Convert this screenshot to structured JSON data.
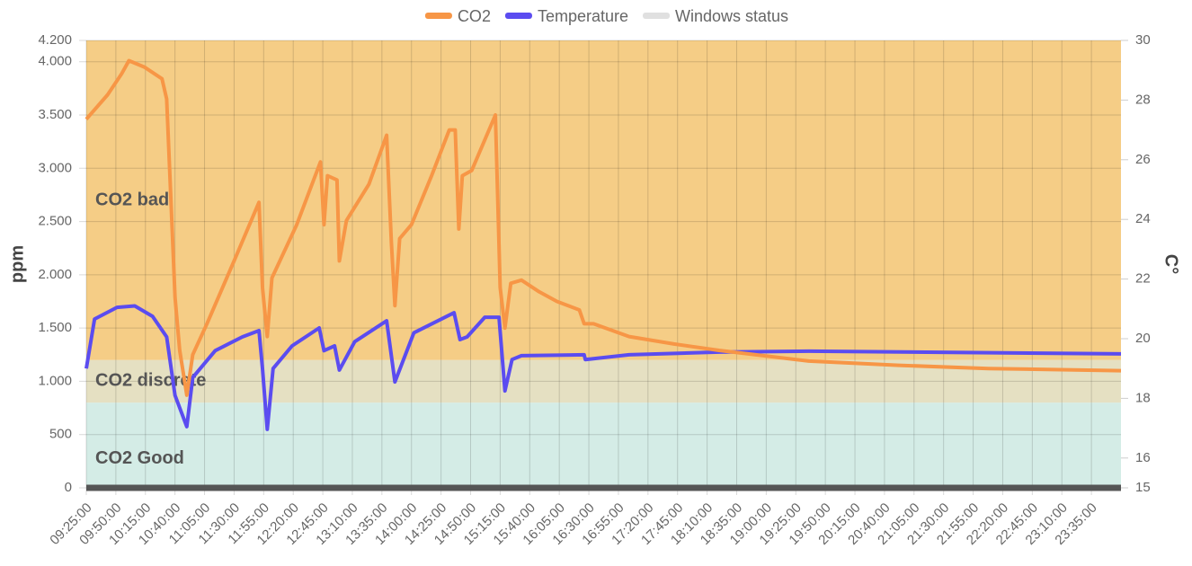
{
  "chart_data": {
    "type": "line",
    "y_label": "ppm",
    "y2_label": "C°",
    "xlim": [
      565,
      1440
    ],
    "ylim": [
      0,
      4200
    ],
    "y2lim": [
      15,
      30
    ],
    "grid": true,
    "legend": "top",
    "yticks": [
      0,
      500,
      {
        "value": 1000,
        "label": "1.000"
      },
      {
        "value": 1500,
        "label": "1.500"
      },
      {
        "value": 2000,
        "label": "2.000"
      },
      {
        "value": 2500,
        "label": "2.500"
      },
      {
        "value": 3000,
        "label": "3.000"
      },
      {
        "value": 3500,
        "label": "3.500"
      },
      {
        "value": 4000,
        "label": "4.000"
      },
      {
        "value": 4200,
        "label": "4.200"
      }
    ],
    "y2ticks": [
      15,
      16,
      18,
      20,
      22,
      24,
      26,
      28,
      30
    ],
    "xticks": [
      {
        "value": 565,
        "label": "09:25:00"
      },
      {
        "value": 590,
        "label": "09:50:00"
      },
      {
        "value": 615,
        "label": "10:15:00"
      },
      {
        "value": 640,
        "label": "10:40:00"
      },
      {
        "value": 665,
        "label": "11:05:00"
      },
      {
        "value": 690,
        "label": "11:30:00"
      },
      {
        "value": 715,
        "label": "11:55:00"
      },
      {
        "value": 740,
        "label": "12:20:00"
      },
      {
        "value": 765,
        "label": "12:45:00"
      },
      {
        "value": 790,
        "label": "13:10:00"
      },
      {
        "value": 815,
        "label": "13:35:00"
      },
      {
        "value": 840,
        "label": "14:00:00"
      },
      {
        "value": 865,
        "label": "14:25:00"
      },
      {
        "value": 890,
        "label": "14:50:00"
      },
      {
        "value": 915,
        "label": "15:15:00"
      },
      {
        "value": 940,
        "label": "15:40:00"
      },
      {
        "value": 965,
        "label": "16:05:00"
      },
      {
        "value": 990,
        "label": "16:30:00"
      },
      {
        "value": 1015,
        "label": "16:55:00"
      },
      {
        "value": 1040,
        "label": "17:20:00"
      },
      {
        "value": 1065,
        "label": "17:45:00"
      },
      {
        "value": 1090,
        "label": "18:10:00"
      },
      {
        "value": 1115,
        "label": "18:35:00"
      },
      {
        "value": 1140,
        "label": "19:00:00"
      },
      {
        "value": 1165,
        "label": "19:25:00"
      },
      {
        "value": 1190,
        "label": "19:50:00"
      },
      {
        "value": 1215,
        "label": "20:15:00"
      },
      {
        "value": 1240,
        "label": "20:40:00"
      },
      {
        "value": 1265,
        "label": "21:05:00"
      },
      {
        "value": 1290,
        "label": "21:30:00"
      },
      {
        "value": 1315,
        "label": "21:55:00"
      },
      {
        "value": 1340,
        "label": "22:20:00"
      },
      {
        "value": 1365,
        "label": "22:45:00"
      },
      {
        "value": 1390,
        "label": "23:10:00"
      },
      {
        "value": 1415,
        "label": "23:35:00"
      }
    ],
    "bands": [
      {
        "label": "CO2 Good",
        "from": 0,
        "to": 800,
        "color": "#d4ece6"
      },
      {
        "label": "CO2 discrete",
        "from": 800,
        "to": 1200,
        "color": "#e5e0c2"
      },
      {
        "label": "CO2 bad",
        "from": 1200,
        "to": 4200,
        "color": "#f5cd86"
      }
    ],
    "series": [
      {
        "name": "CO2",
        "color": "#f79646",
        "x": [
          565,
          583,
          595,
          601,
          614,
          629,
          633,
          640,
          644,
          650,
          655,
          667,
          690,
          711,
          714,
          718,
          722,
          743,
          763,
          766,
          769,
          777,
          779,
          785,
          804,
          819,
          823,
          826,
          830,
          840,
          857,
          872,
          877,
          880,
          883,
          891,
          911,
          915,
          919,
          924,
          933,
          948,
          963,
          982,
          986,
          994,
          1024,
          1062,
          1100,
          1176,
          1252,
          1328,
          1440
        ],
        "values": [
          3460,
          3690,
          3890,
          4010,
          3950,
          3840,
          3650,
          1790,
          1290,
          870,
          1250,
          1540,
          2130,
          2680,
          1880,
          1420,
          1970,
          2470,
          3060,
          2470,
          2930,
          2890,
          2130,
          2510,
          2850,
          3310,
          2300,
          1710,
          2340,
          2470,
          2930,
          3360,
          3360,
          2430,
          2930,
          2980,
          3500,
          1880,
          1500,
          1920,
          1950,
          1840,
          1750,
          1670,
          1540,
          1540,
          1420,
          1350,
          1290,
          1190,
          1150,
          1120,
          1100
        ]
      },
      {
        "name": "Temperature",
        "color": "#5b4cf0",
        "axis": "y2",
        "x": [
          565,
          572,
          591,
          606,
          621,
          633,
          640,
          650,
          655,
          674,
          697,
          711,
          714,
          718,
          723,
          739,
          762,
          766,
          775,
          779,
          792,
          819,
          826,
          842,
          876,
          881,
          887,
          902,
          914,
          919,
          925,
          933,
          986,
          987,
          1024,
          1100,
          1176,
          1440
        ],
        "values": [
          19.0,
          20.66,
          21.05,
          21.1,
          20.75,
          20.06,
          18.1,
          17.05,
          18.7,
          19.6,
          20.06,
          20.27,
          19.0,
          16.96,
          19.0,
          19.76,
          20.36,
          19.6,
          19.76,
          18.95,
          19.9,
          20.6,
          18.55,
          20.2,
          20.87,
          19.97,
          20.06,
          20.72,
          20.72,
          18.25,
          19.3,
          19.43,
          19.46,
          19.3,
          19.46,
          19.55,
          19.58,
          19.49
        ]
      },
      {
        "name": "Windows status",
        "color": "#e0e0e0",
        "line_color": "#555555",
        "x": [
          565,
          1440
        ],
        "values": [
          0,
          0
        ]
      }
    ]
  }
}
